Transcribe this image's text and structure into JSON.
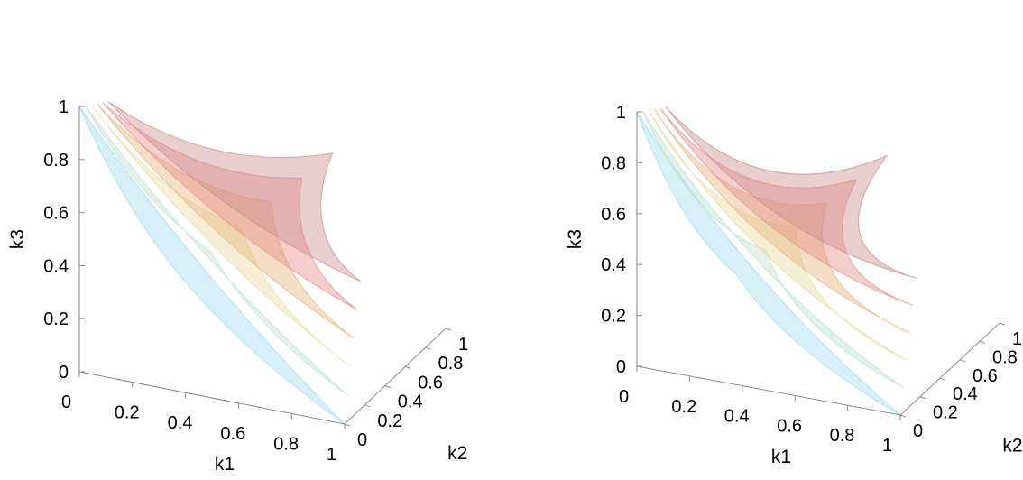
{
  "chart_data": [
    {
      "type": "surface3d",
      "title": "",
      "axes": {
        "x": {
          "label": "k1",
          "ticks": [
            "0",
            "0.2",
            "0.4",
            "0.6",
            "0.8",
            "1"
          ],
          "range": [
            0,
            1
          ]
        },
        "y": {
          "label": "k2",
          "ticks": [
            "0",
            "0.2",
            "0.4",
            "0.6",
            "0.8",
            "1"
          ],
          "range": [
            0,
            1
          ]
        },
        "z": {
          "label": "k3",
          "ticks": [
            "0",
            "0.2",
            "0.4",
            "0.6",
            "0.8",
            "1"
          ],
          "range": [
            0,
            1
          ]
        }
      },
      "grid": false,
      "surface_levels": [
        0,
        0.2,
        0.4,
        0.6,
        0.8,
        1.0
      ],
      "surface_colors": [
        "#9fd8ec",
        "#b9dfcf",
        "#e6dc9c",
        "#e8b07a",
        "#e58b84",
        "#c98a8a"
      ]
    },
    {
      "type": "surface3d",
      "title": "",
      "axes": {
        "x": {
          "label": "k1",
          "ticks": [
            "0",
            "0.2",
            "0.4",
            "0.6",
            "0.8",
            "1"
          ],
          "range": [
            0,
            1
          ]
        },
        "y": {
          "label": "k2",
          "ticks": [
            "0",
            "0.2",
            "0.4",
            "0.6",
            "0.8",
            "1"
          ],
          "range": [
            0,
            1
          ]
        },
        "z": {
          "label": "k3",
          "ticks": [
            "0",
            "0.2",
            "0.4",
            "0.6",
            "0.8",
            "1"
          ],
          "range": [
            0,
            1
          ]
        }
      },
      "grid": false,
      "surface_levels": [
        0,
        0.2,
        0.4,
        0.6,
        0.8,
        1.0
      ],
      "surface_colors": [
        "#9fd8ec",
        "#b9dfcf",
        "#e6dc9c",
        "#e8b07a",
        "#e58b84",
        "#c98a8a"
      ]
    }
  ]
}
